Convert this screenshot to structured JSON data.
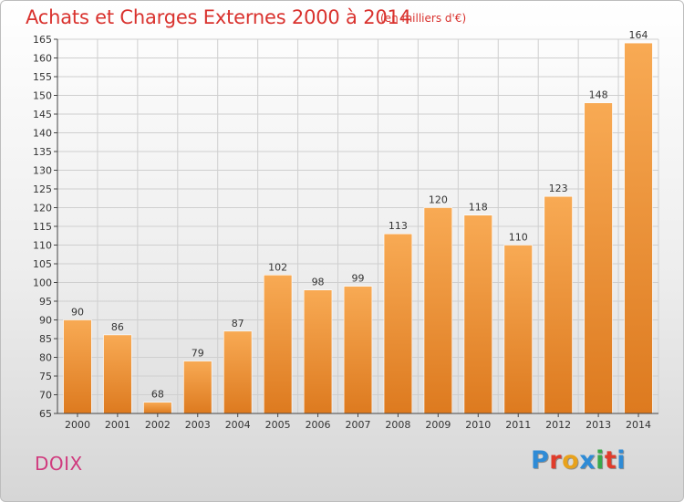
{
  "header": {
    "title": "Achats et Charges Externes 2000 à 2014",
    "subtitle": "(en milliers d'€)"
  },
  "footer": {
    "commune": "DOIX",
    "logo_text": "Proxiti",
    "logo_colors": [
      "#2e8bd6",
      "#e03c2b",
      "#e8a21c",
      "#2e8bd6",
      "#3aa84a",
      "#e03c2b",
      "#2e8bd6"
    ]
  },
  "chart_data": {
    "type": "bar",
    "title": "Achats et Charges Externes 2000 à 2014",
    "subtitle": "(en milliers d'€)",
    "categories": [
      "2000",
      "2001",
      "2002",
      "2003",
      "2004",
      "2005",
      "2006",
      "2007",
      "2008",
      "2009",
      "2010",
      "2011",
      "2012",
      "2013",
      "2014"
    ],
    "values": [
      90,
      86,
      68,
      79,
      87,
      102,
      98,
      99,
      113,
      120,
      118,
      110,
      123,
      148,
      164
    ],
    "data_labels": [
      "90",
      "86",
      "68",
      "79",
      "87",
      "102",
      "98",
      "99",
      "113",
      "120",
      "118",
      "110",
      "123",
      "148",
      "164"
    ],
    "ylim": [
      65,
      165
    ],
    "yticks": [
      65,
      70,
      75,
      80,
      85,
      90,
      95,
      100,
      105,
      110,
      115,
      120,
      125,
      130,
      135,
      140,
      145,
      150,
      155,
      160,
      165
    ],
    "grid": true,
    "legend": "none",
    "colors": {
      "bar_light": "#f8aa54",
      "bar_dark": "#dd7a1f",
      "grid": "#cfcfcf",
      "axis": "#444444",
      "text": "#333333"
    }
  }
}
